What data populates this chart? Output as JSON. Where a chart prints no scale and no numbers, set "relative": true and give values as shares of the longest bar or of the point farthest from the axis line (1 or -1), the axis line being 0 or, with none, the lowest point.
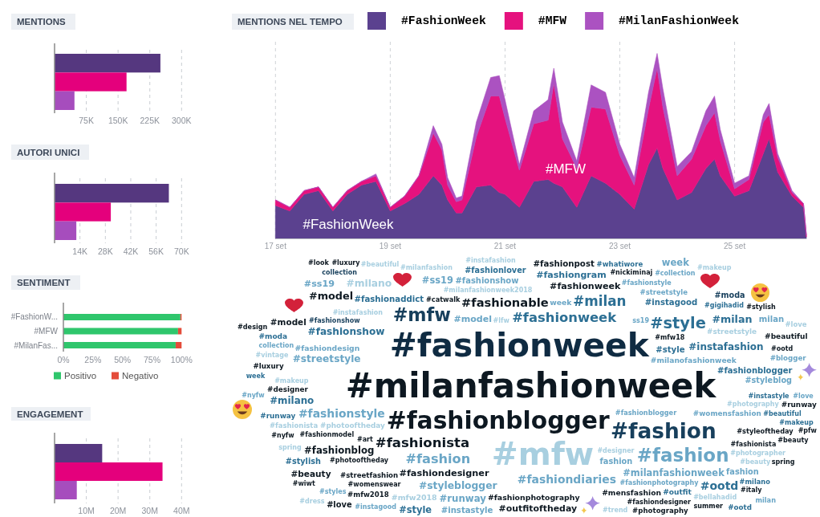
{
  "chart_data": [
    {
      "type": "bar",
      "title": "MENTIONS",
      "orientation": "horizontal",
      "categories": [
        null,
        null,
        null
      ],
      "values": [
        250000,
        170000,
        47000
      ],
      "colors": [
        "#55377f",
        "#e4007c",
        "#a64dbd"
      ],
      "xlim": [
        0,
        300000
      ],
      "xticks": [
        {
          "value": 75000,
          "label": "75K"
        },
        {
          "value": 150000,
          "label": "150K"
        },
        {
          "value": 225000,
          "label": "225K"
        },
        {
          "value": 300000,
          "label": "300K"
        }
      ],
      "grid": "x"
    },
    {
      "type": "bar",
      "title": "AUTORI UNICI",
      "orientation": "horizontal",
      "categories": [
        null,
        null,
        null
      ],
      "values": [
        63000,
        31000,
        12000
      ],
      "colors": [
        "#55377f",
        "#e4007c",
        "#a64dbd"
      ],
      "xlim": [
        0,
        70000
      ],
      "xticks": [
        {
          "value": 14000,
          "label": "14K"
        },
        {
          "value": 28000,
          "label": "28K"
        },
        {
          "value": 42000,
          "label": "42K"
        },
        {
          "value": 56000,
          "label": "56K"
        },
        {
          "value": 70000,
          "label": "70K"
        }
      ],
      "grid": "x"
    },
    {
      "type": "bar",
      "title": "SENTIMENT",
      "orientation": "horizontal",
      "stacked": true,
      "categories": [
        "#FashionW...",
        "#MFW",
        "#MilanFas..."
      ],
      "series": [
        {
          "name": "Positivo",
          "color": "#2fc66c",
          "values": [
            99,
            97,
            95
          ]
        },
        {
          "name": "Negativo",
          "color": "#e44c3a",
          "values": [
            1,
            3,
            5
          ]
        }
      ],
      "xlim": [
        0,
        100
      ],
      "xticks": [
        {
          "value": 0,
          "label": "0%"
        },
        {
          "value": 25,
          "label": "25%"
        },
        {
          "value": 50,
          "label": "50%"
        },
        {
          "value": 75,
          "label": "75%"
        },
        {
          "value": 100,
          "label": "100%"
        }
      ],
      "legend": "bottom"
    },
    {
      "type": "bar",
      "title": "ENGAGEMENT",
      "orientation": "horizontal",
      "categories": [
        null,
        null,
        null
      ],
      "values": [
        15000000,
        34000000,
        7000000
      ],
      "colors": [
        "#55377f",
        "#e4007c",
        "#a64dbd"
      ],
      "xlim": [
        0,
        40000000
      ],
      "xticks": [
        {
          "value": 10000000,
          "label": "10M"
        },
        {
          "value": 20000000,
          "label": "20M"
        },
        {
          "value": 30000000,
          "label": "30M"
        },
        {
          "value": 40000000,
          "label": "40M"
        }
      ],
      "grid": "x"
    },
    {
      "type": "area",
      "title": "MENTIONS NEL TEMPO",
      "stacked": true,
      "relative": true,
      "legend": "top",
      "grid": "x",
      "x": [
        17,
        17.25,
        17.5,
        17.75,
        18,
        18.25,
        18.5,
        18.75,
        19,
        19.25,
        19.5,
        19.75,
        19.9,
        20,
        20.15,
        20.25,
        20.5,
        20.75,
        20.9,
        21,
        21.25,
        21.5,
        21.75,
        21.85,
        22,
        22.25,
        22.5,
        22.75,
        23,
        23.25,
        23.5,
        23.65,
        23.75,
        24,
        24.25,
        24.5,
        24.65,
        24.75,
        25,
        25.25,
        25.5,
        25.6,
        25.75,
        26,
        26.2,
        26.25
      ],
      "xlim": [
        17,
        26.25
      ],
      "xticks": [
        {
          "value": 17,
          "label": "17 set"
        },
        {
          "value": 19,
          "label": "19 set"
        },
        {
          "value": 21,
          "label": "21 set"
        },
        {
          "value": 23,
          "label": "23 set"
        },
        {
          "value": 25,
          "label": "25 set"
        }
      ],
      "series": [
        {
          "name": "#FashionWeek",
          "color": "#5b418f",
          "values": [
            0.18,
            0.15,
            0.24,
            0.26,
            0.15,
            0.24,
            0.29,
            0.31,
            0.15,
            0.19,
            0.24,
            0.34,
            0.29,
            0.21,
            0.14,
            0.14,
            0.28,
            0.29,
            0.25,
            0.24,
            0.17,
            0.31,
            0.32,
            0.3,
            0.28,
            0.17,
            0.34,
            0.3,
            0.24,
            0.16,
            0.4,
            0.49,
            0.38,
            0.21,
            0.25,
            0.38,
            0.43,
            0.34,
            0.23,
            0.26,
            0.46,
            0.54,
            0.36,
            0.23,
            0.17,
            0.01
          ]
        },
        {
          "name": "#MFW",
          "color": "#e5127e",
          "values": [
            0.03,
            0.02,
            0.02,
            0.02,
            0.02,
            0.02,
            0.02,
            0.03,
            0.02,
            0.04,
            0.1,
            0.23,
            0.19,
            0.08,
            0.06,
            0.07,
            0.27,
            0.48,
            0.52,
            0.41,
            0.2,
            0.31,
            0.32,
            0.54,
            0.26,
            0.21,
            0.37,
            0.4,
            0.21,
            0.13,
            0.3,
            0.43,
            0.33,
            0.13,
            0.18,
            0.23,
            0.25,
            0.19,
            0.04,
            0.06,
            0.17,
            0.13,
            0.08,
            0.02,
            0.02,
            0.01
          ]
        },
        {
          "name": "#MilanFashionWeek",
          "color": "#ab52c1",
          "values": [
            0,
            0,
            0,
            0,
            0,
            0,
            0,
            0.01,
            0,
            0,
            0,
            0.04,
            0.03,
            0.04,
            0.02,
            0.02,
            0.08,
            0.1,
            0.11,
            0.1,
            0.03,
            0.07,
            0.11,
            0.08,
            0.09,
            0.04,
            0.12,
            0.09,
            0.06,
            0.04,
            0.09,
            0.08,
            0.1,
            0.05,
            0.04,
            0.08,
            0.09,
            0.06,
            0.03,
            0.02,
            0.04,
            0.06,
            0.02,
            0.01,
            0,
            0
          ]
        }
      ],
      "annotations": [
        "#FashionWeek",
        "#MFW"
      ]
    },
    {
      "type": "other",
      "categories": [
        "#luxury",
        "#look",
        "#beautiful",
        "#mfw18",
        "#nickiminaj",
        "#whatiwore",
        "#fashionlover",
        "#fashionpost",
        "#fashionstyle",
        "week",
        "#catwalk",
        "#milano",
        "#model",
        "#instafashion",
        "#collection",
        "#makeup",
        "#moda",
        "#ss19",
        "collection",
        "#milanfashion",
        "#fashionshow",
        "#fashiongram",
        "#instagood",
        "#gigihadid",
        "#stylish",
        "#fashionaddict",
        "#fashionweek",
        "#streetstyle",
        "#milan",
        "milan",
        "#milanfashionweek2018",
        "#model",
        "#instafashion",
        "#mfw",
        "#fashionable",
        "#milan",
        "#style",
        "#streetstyle",
        "#love",
        "ss19",
        "#design",
        "#fashionshow",
        "#ss19",
        "#lfw",
        "#fashionweek",
        "#beautiful",
        "#moda",
        "collection",
        "#fashionshow",
        "#fashionweek",
        "#vintage",
        "#fashiondesign",
        "#instafashion",
        "#ootd",
        "#luxury",
        "#streetstyle",
        "#fashionblogger",
        "#blogger",
        "week",
        "#makeup",
        "#model",
        "week",
        "#milanofashionweek",
        "#style",
        "#styleblog",
        "#milanfashionweek",
        "#beautiful",
        "#runway",
        "#love",
        "#instastyle",
        "#nyfw",
        "#designer",
        "#milano",
        "#fashionstyle",
        "#fashionblogger",
        "#fashion",
        "#photography",
        "#pfw",
        "#runway",
        "#photooftheday",
        "#womensfashion",
        "#makeup",
        "#fashionmodel",
        "#fashionista",
        "#nyfw",
        "#fashionista",
        "#styleoftheday",
        "#beauty",
        "#mfw",
        "#fashion",
        "#art",
        "#fashion",
        "spring",
        "#fashionblog",
        "#milanfashionweek",
        "#fashionista",
        "spring",
        "#stylish",
        "#photooftheday",
        "#fashiondesigner",
        "#fashiondiaries",
        "#fashionblogger",
        "#photographer",
        "#womenswear",
        "#fashionphotography",
        "#fashionphotography",
        "fashion",
        "#beauty",
        "#beauty",
        "#streetfashion",
        "#styleblogger",
        "#outfitoftheday",
        "#fashiondesigner",
        "#bellahadid",
        "#milano",
        "#wiwt",
        "#mfw2018",
        "#mfw2018",
        "#instastyle",
        "#photography",
        "#ootd",
        "#italy",
        "#dress",
        "#instagood",
        "#runway",
        "#style",
        "#mensfashion",
        "fashion",
        "milan",
        "#outfit",
        "#styles",
        "#designer",
        "summer",
        "#love",
        "#ootd",
        "#trend"
      ],
      "colors": [
        "#0d1821",
        "#0d1821",
        "#a8cfe0",
        "#0d1821",
        "#0d1821",
        "#2c6f94",
        "#2c6f94",
        "#0d1821",
        "#6aa6c6",
        "#6aa6c6",
        "#0d1821",
        "#a8cfe0",
        "#0d1821",
        "#a8cfe0",
        "#6aa6c6",
        "#a8cfe0",
        "#173f5c",
        "#6aa6c6",
        "#173f5c",
        "#a8cfe0",
        "#6aa6c6",
        "#2c6f94",
        "#2c6f94",
        "#2c6f94",
        "#0d1821",
        "#2c6f94",
        "#0d1821",
        "#6aa6c6",
        "#2c6f94",
        "#6aa6c6",
        "#a8cfe0",
        "#0d1821",
        "#a8cfe0",
        "#173f5c",
        "#0d1821",
        "#2c6f94",
        "#2c6f94",
        "#a8cfe0",
        "#a8cfe0",
        "#6aa6c6",
        "#0d1821",
        "#2c6f94",
        "#6aa6c6",
        "#a8cfe0",
        "#2c6f94",
        "#0d1821",
        "#2c6f94",
        "#6aa6c6",
        "#173f5c",
        "#0f2b42",
        "#a8cfe0",
        "#6aa6c6",
        "#2c6f94",
        "#0d1821",
        "#0d1821",
        "#6aa6c6",
        "#2c6f94",
        "#6aa6c6",
        "#2c6f94",
        "#a8cfe0",
        "#6aa6c6",
        "#6aa6c6",
        "#6aa6c6",
        "#2c6f94",
        "#6aa6c6",
        "#0d1821",
        "#2c6f94",
        "#0d1821",
        "#6aa6c6",
        "#2c6f94",
        "#6aa6c6",
        "#0d1821",
        "#2c6f94",
        "#6aa6c6",
        "#0d1821",
        "#6aa6c6",
        "#a8cfe0",
        "#0d1821",
        "#2c6f94",
        "#a8cfe0",
        "#6aa6c6",
        "#2c6f94",
        "#0d1821",
        "#0d1821",
        "#0d1821",
        "#a8cfe0",
        "#0d1821",
        "#0d1821",
        "#a8cfe0",
        "#173f5c",
        "#0d1821",
        "#6aa6c6",
        "#a8cfe0",
        "#0d1821",
        "#6aa6c6",
        "#0d1821",
        "#0d1821",
        "#2c6f94",
        "#0d1821",
        "#0d1821",
        "#6aa6c6",
        "#6aa6c6",
        "#a8cfe0",
        "#0d1821",
        "#0d1821",
        "#6aa6c6",
        "#6aa6c6",
        "#a8cfe0",
        "#0d1821",
        "#0d1821",
        "#6aa6c6",
        "#0d1821",
        "#0d1821",
        "#a8cfe0",
        "#2c6f94",
        "#0d1821",
        "#0d1821",
        "#a8cfe0",
        "#6aa6c6",
        "#0d1821",
        "#2c6f94",
        "#0d1821",
        "#a8cfe0",
        "#6aa6c6",
        "#6aa6c6",
        "#2c6f94",
        "#0d1821",
        "#6aa6c6",
        "#6aa6c6",
        "#2c6f94",
        "#6aa6c6",
        "#a8cfe0",
        "#0d1821",
        "#0d1821",
        "#2c6f94",
        "#a8cfe0"
      ]
    }
  ]
}
